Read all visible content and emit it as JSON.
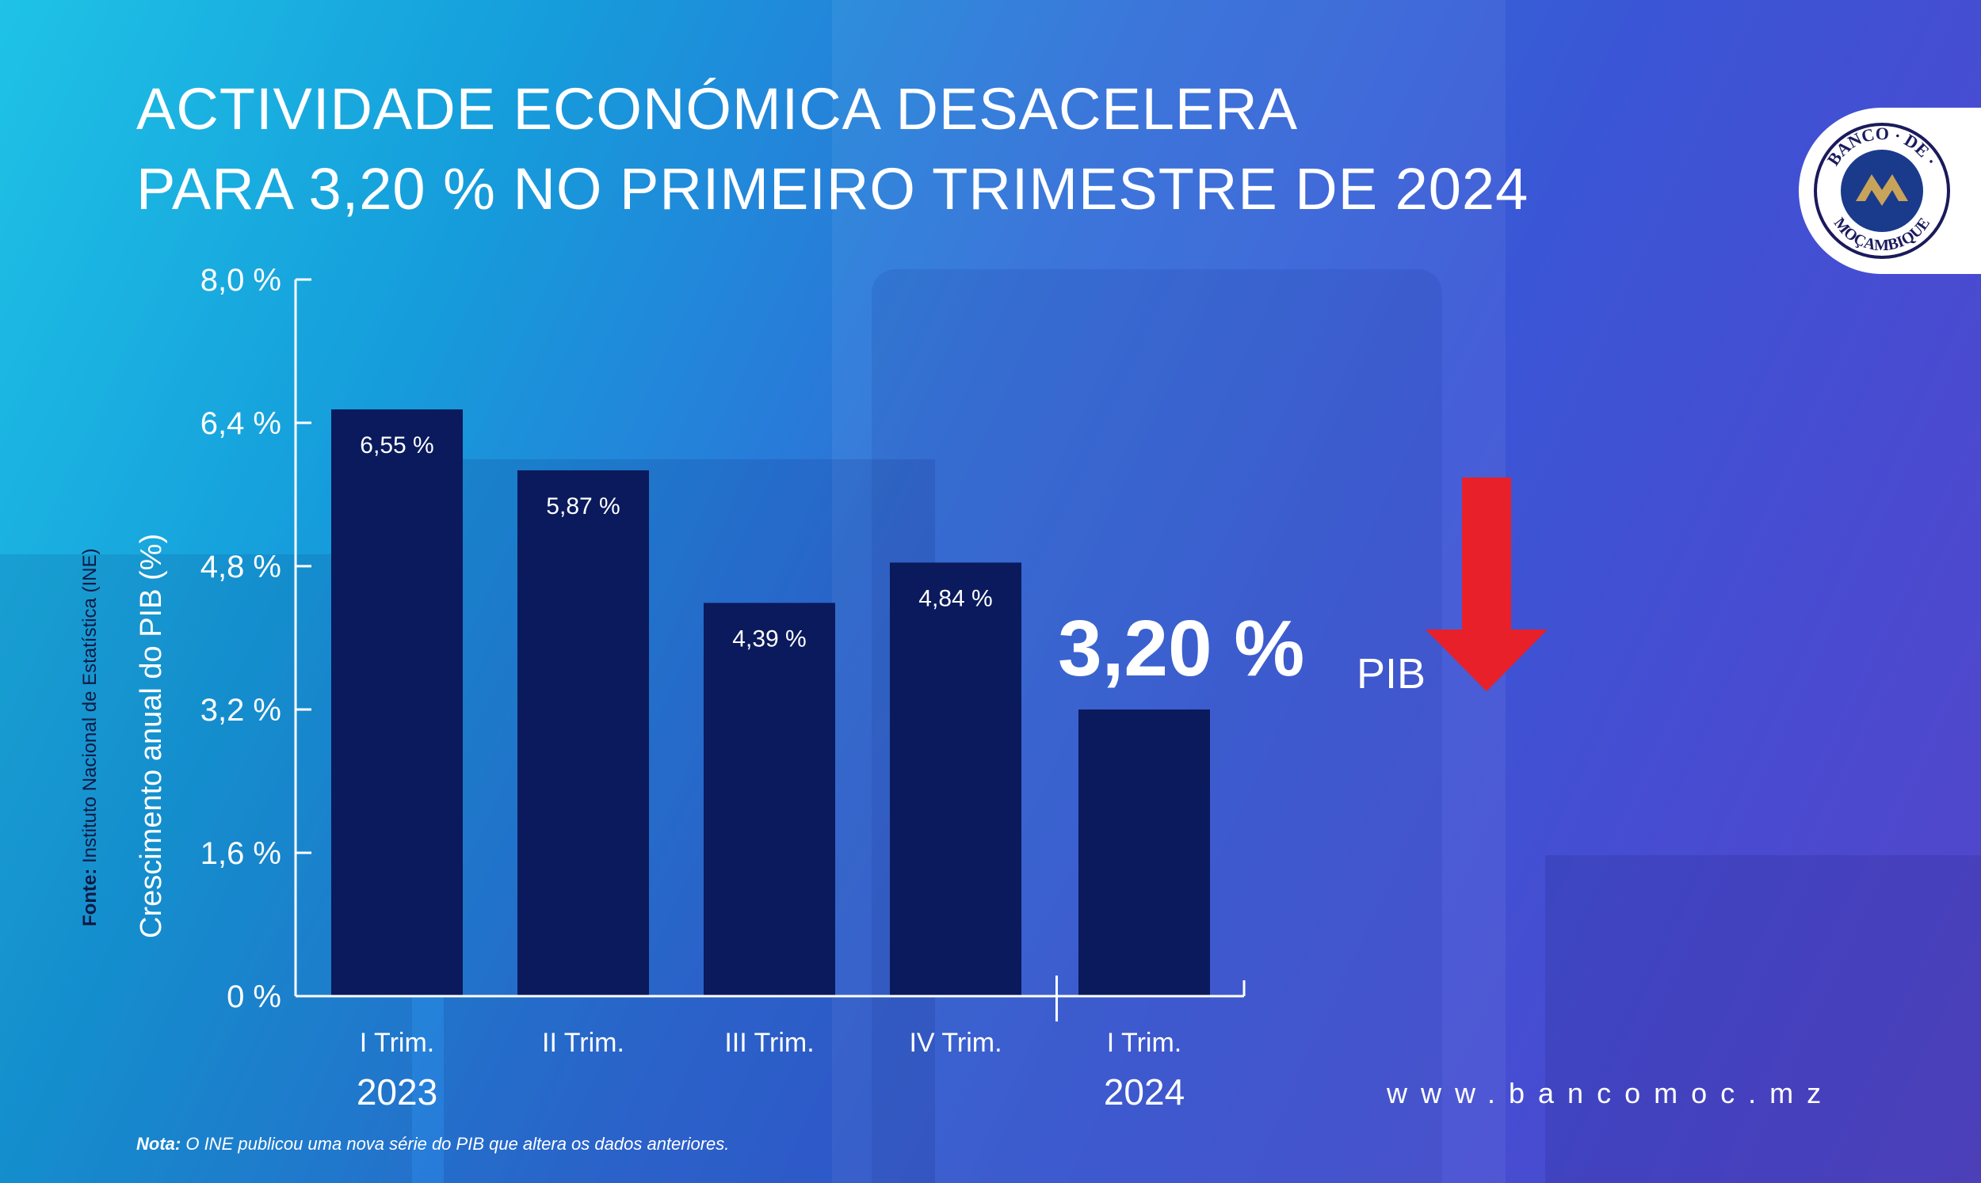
{
  "title": {
    "line1": "ACTIVIDADE ECONÓMICA DESACELERA",
    "line2": "PARA 3,20 % NO PRIMEIRO TRIMESTRE DE 2024"
  },
  "logo": {
    "text_top": "BANCO · DE ·",
    "text_bottom": "MOÇAMBIQUE"
  },
  "website": "www.bancomoc.mz",
  "note": {
    "label": "Nota:",
    "text": "O INE publicou uma nova série do PIB que altera os dados anteriores."
  },
  "source": {
    "label": "Fonte:",
    "text": "Instituto Nacional de Estatística (INE)"
  },
  "highlight": {
    "value_label": "3,20 %",
    "indicator": "PIB",
    "arrow_color": "#e8202a"
  },
  "colors": {
    "bar": "#0a1a5c",
    "text": "#ffffff",
    "axis": "#ffffff"
  },
  "chart_data": {
    "type": "bar",
    "title": "ACTIVIDADE ECONÓMICA DESACELERA PARA 3,20 % NO PRIMEIRO TRIMESTRE DE 2024",
    "xlabel": "",
    "ylabel": "Crescimento anual do PIB (%)",
    "ylim": [
      0,
      8.0
    ],
    "yticks": [
      0,
      1.6,
      3.2,
      4.8,
      6.4,
      8.0
    ],
    "ytick_labels": [
      "0 %",
      "1,6 %",
      "3,2 %",
      "4,8 %",
      "6,4 %",
      "8,0 %"
    ],
    "categories": [
      "I Trim.",
      "II Trim.",
      "III Trim.",
      "IV Trim.",
      "I Trim."
    ],
    "values": [
      6.55,
      5.87,
      4.39,
      4.84,
      3.2
    ],
    "data_labels": [
      "6,55 %",
      "5,87 %",
      "4,39 %",
      "4,84 %",
      ""
    ],
    "groups": [
      {
        "label": "2023",
        "start": 0,
        "end": 3
      },
      {
        "label": "2024",
        "start": 4,
        "end": 4
      }
    ],
    "grid": false
  }
}
